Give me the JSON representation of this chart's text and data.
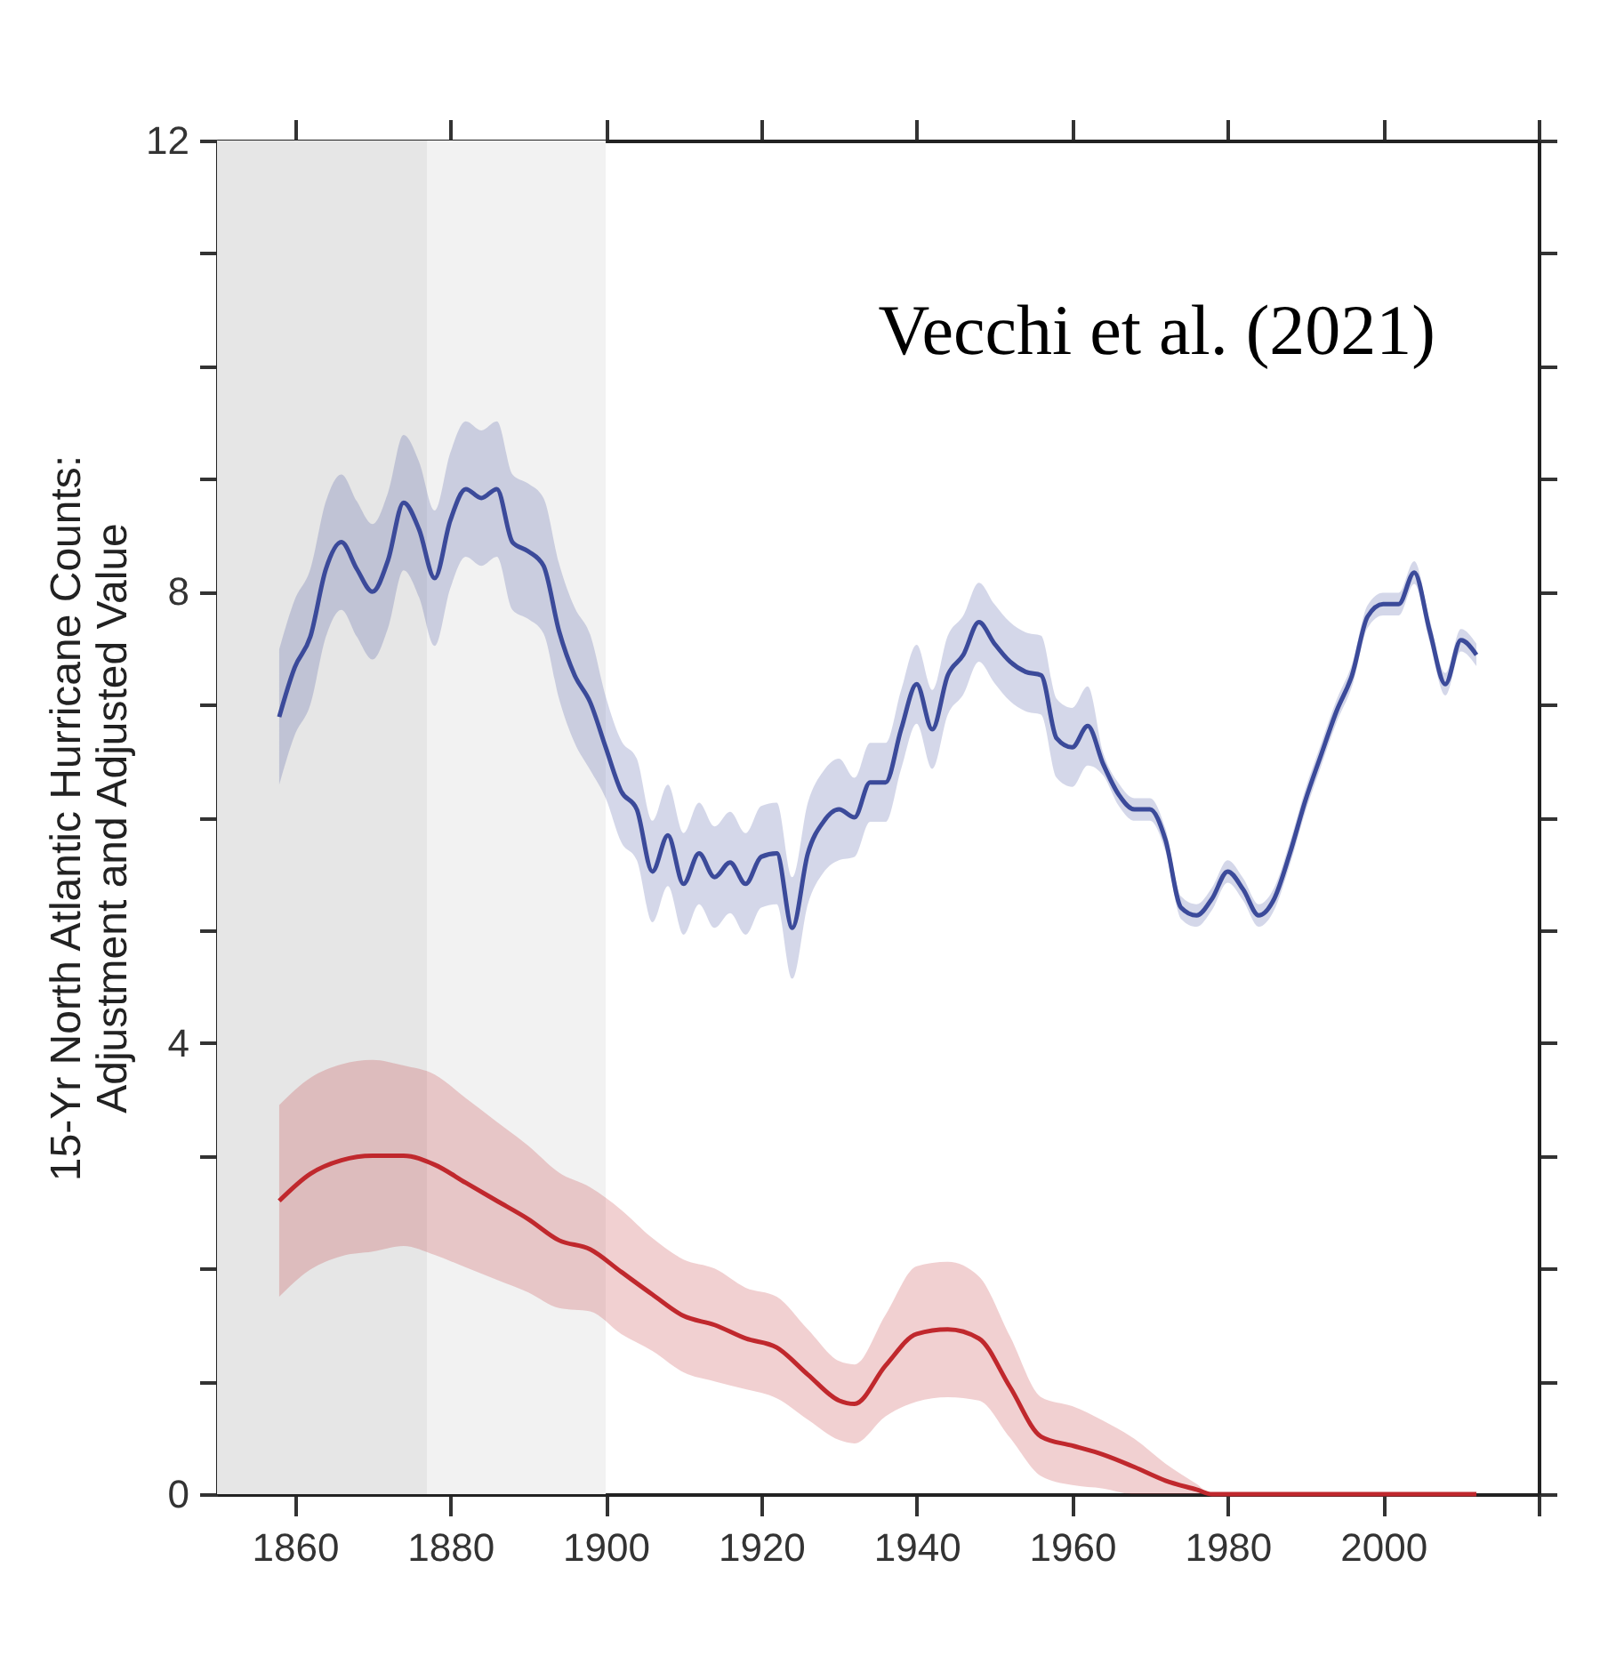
{
  "chart_data": {
    "type": "line",
    "ylabel": "15-Yr North Atlantic Hurricane Counts:\nAdjustment and Adjusted Value",
    "annotations": [
      "Vecchi et al. (2021)"
    ],
    "xlim": [
      1850,
      2020
    ],
    "xticks": [
      1860,
      1880,
      1900,
      1920,
      1940,
      1960,
      1980,
      2000,
      {
        "value": 2020,
        "label": null
      }
    ],
    "ylim": [
      0,
      12
    ],
    "yticks": [
      0,
      {
        "value": 1,
        "label": null
      },
      {
        "value": 2,
        "label": null
      },
      {
        "value": 3,
        "label": null
      },
      4,
      {
        "value": 5,
        "label": null
      },
      {
        "value": 6,
        "label": null
      },
      {
        "value": 7,
        "label": null
      },
      8,
      {
        "value": 9,
        "label": null
      },
      {
        "value": 10,
        "label": null
      },
      {
        "value": 11,
        "label": null
      },
      12
    ],
    "grid": false,
    "line_style": "solid",
    "marker": "none",
    "bands": [
      {
        "axis": "x",
        "from": 1850,
        "to": 1877,
        "color": "#e6e6e6"
      },
      {
        "axis": "x",
        "from": 1877,
        "to": 1900,
        "color": "#f2f2f2"
      }
    ],
    "series": [
      {
        "color": "#3b4a9a",
        "x": [
          1858,
          1860,
          1862,
          1864,
          1866,
          1868,
          1870,
          1872,
          1874,
          1876,
          1878,
          1880,
          1882,
          1884,
          1886,
          1888,
          1890,
          1892,
          1894,
          1896,
          1898,
          1900,
          1902,
          1904,
          1906,
          1908,
          1910,
          1912,
          1914,
          1916,
          1918,
          1920,
          1922,
          1924,
          1926,
          1928,
          1930,
          1932,
          1934,
          1936,
          1938,
          1940,
          1942,
          1944,
          1946,
          1948,
          1950,
          1952,
          1954,
          1956,
          1958,
          1960,
          1962,
          1964,
          1966,
          1968,
          1970,
          1972,
          1974,
          1976,
          1978,
          1980,
          1982,
          1984,
          1986,
          1988,
          1990,
          1992,
          1994,
          1996,
          1998,
          2000,
          2002,
          2004,
          2006,
          2008,
          2010,
          2012
        ],
        "values": [
          6.89,
          7.33,
          7.6,
          8.2,
          8.44,
          8.2,
          8.0,
          8.28,
          8.79,
          8.55,
          8.12,
          8.63,
          8.91,
          8.83,
          8.91,
          8.44,
          8.36,
          8.23,
          7.65,
          7.26,
          7.02,
          6.62,
          6.23,
          6.07,
          5.52,
          5.84,
          5.41,
          5.68,
          5.47,
          5.6,
          5.41,
          5.65,
          5.68,
          5.02,
          5.68,
          5.96,
          6.07,
          6.0,
          6.31,
          6.31,
          6.78,
          7.18,
          6.78,
          7.26,
          7.44,
          7.73,
          7.54,
          7.38,
          7.29,
          7.26,
          6.7,
          6.62,
          6.81,
          6.47,
          6.2,
          6.07,
          6.07,
          5.8,
          5.2,
          5.13,
          5.28,
          5.52,
          5.36,
          5.13,
          5.28,
          5.68,
          6.15,
          6.55,
          6.94,
          7.26,
          7.78,
          7.89,
          7.89,
          8.17,
          7.65,
          7.18,
          7.57,
          7.44
        ],
        "upper": [
          7.49,
          7.93,
          8.2,
          8.8,
          9.04,
          8.8,
          8.6,
          8.88,
          9.39,
          9.15,
          8.72,
          9.23,
          9.51,
          9.43,
          9.51,
          9.04,
          8.96,
          8.83,
          8.25,
          7.86,
          7.62,
          7.07,
          6.68,
          6.52,
          5.97,
          6.29,
          5.86,
          6.13,
          5.92,
          6.05,
          5.86,
          6.1,
          6.13,
          5.47,
          6.13,
          6.41,
          6.52,
          6.35,
          6.66,
          6.66,
          7.13,
          7.53,
          7.13,
          7.61,
          7.79,
          8.08,
          7.89,
          7.73,
          7.64,
          7.61,
          7.05,
          6.97,
          7.16,
          6.57,
          6.3,
          6.17,
          6.17,
          5.9,
          5.3,
          5.23,
          5.38,
          5.62,
          5.46,
          5.23,
          5.38,
          5.78,
          6.25,
          6.65,
          7.04,
          7.36,
          7.88,
          7.99,
          7.99,
          8.27,
          7.75,
          7.28,
          7.67,
          7.54
        ],
        "lower": [
          6.29,
          6.73,
          7.0,
          7.6,
          7.84,
          7.6,
          7.4,
          7.68,
          8.19,
          7.95,
          7.52,
          8.03,
          8.31,
          8.23,
          8.31,
          7.84,
          7.76,
          7.63,
          7.05,
          6.66,
          6.42,
          6.17,
          5.78,
          5.62,
          5.07,
          5.39,
          4.96,
          5.23,
          5.02,
          5.15,
          4.96,
          5.2,
          5.23,
          4.57,
          5.23,
          5.51,
          5.62,
          5.65,
          5.96,
          5.96,
          6.43,
          6.83,
          6.43,
          6.91,
          7.09,
          7.38,
          7.19,
          7.03,
          6.94,
          6.91,
          6.35,
          6.27,
          6.46,
          6.37,
          6.1,
          5.97,
          5.97,
          5.7,
          5.1,
          5.03,
          5.18,
          5.42,
          5.26,
          5.03,
          5.18,
          5.58,
          6.05,
          6.45,
          6.84,
          7.16,
          7.68,
          7.79,
          7.79,
          8.07,
          7.55,
          7.08,
          7.47,
          7.34
        ]
      },
      {
        "color": "#c0282d",
        "x": [
          1858,
          1862,
          1866,
          1870,
          1874,
          1878,
          1882,
          1886,
          1890,
          1894,
          1898,
          1902,
          1906,
          1910,
          1914,
          1918,
          1922,
          1926,
          1930,
          1932,
          1936,
          1940,
          1944,
          1948,
          1952,
          1956,
          1960,
          1964,
          1968,
          1972,
          1976,
          1978,
          1990,
          2000,
          2012
        ],
        "values": [
          2.6,
          2.84,
          2.96,
          3.0,
          3.0,
          2.92,
          2.76,
          2.6,
          2.44,
          2.25,
          2.17,
          1.97,
          1.77,
          1.58,
          1.5,
          1.38,
          1.3,
          1.06,
          0.83,
          0.8,
          1.14,
          1.42,
          1.46,
          1.38,
          0.95,
          0.51,
          0.43,
          0.35,
          0.24,
          0.12,
          0.04,
          0,
          0,
          0,
          0
        ],
        "upper": [
          3.45,
          3.69,
          3.81,
          3.85,
          3.8,
          3.72,
          3.51,
          3.3,
          3.09,
          2.85,
          2.72,
          2.52,
          2.27,
          2.08,
          2.0,
          1.83,
          1.75,
          1.46,
          1.18,
          1.15,
          1.59,
          2.02,
          2.06,
          1.93,
          1.4,
          0.86,
          0.78,
          0.65,
          0.49,
          0.27,
          0.09,
          0,
          0,
          0,
          0
        ],
        "lower": [
          1.75,
          1.99,
          2.11,
          2.15,
          2.2,
          2.12,
          2.01,
          1.9,
          1.79,
          1.65,
          1.62,
          1.42,
          1.27,
          1.08,
          1.0,
          0.93,
          0.85,
          0.66,
          0.48,
          0.45,
          0.69,
          0.82,
          0.86,
          0.83,
          0.5,
          0.16,
          0.08,
          0.05,
          0,
          0,
          0,
          0,
          0,
          0,
          0
        ]
      }
    ]
  }
}
